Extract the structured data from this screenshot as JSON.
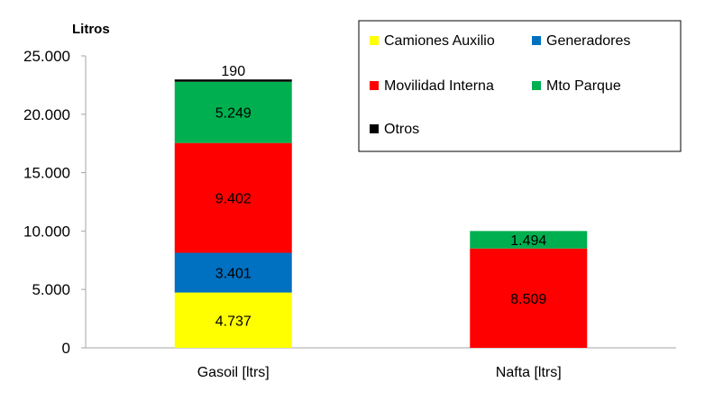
{
  "chart_data": {
    "type": "bar",
    "stacked": true,
    "ylabel": "Litros",
    "ylim": [
      0,
      25000
    ],
    "yticks": [
      0,
      5000,
      10000,
      15000,
      20000,
      25000
    ],
    "ytick_labels": [
      "0",
      "5.000",
      "10.000",
      "15.000",
      "20.000",
      "25.000"
    ],
    "grid": false,
    "legend_position": "top-right",
    "categories": [
      "Gasoil [ltrs]",
      "Nafta [ltrs]"
    ],
    "series": [
      {
        "name": "Camiones Auxilio",
        "color": "#ffff00",
        "values": [
          4737,
          0
        ],
        "labels": [
          "4.737",
          ""
        ]
      },
      {
        "name": "Generadores",
        "color": "#0070c0",
        "values": [
          3401,
          0
        ],
        "labels": [
          "3.401",
          ""
        ]
      },
      {
        "name": "Movilidad Interna",
        "color": "#ff0000",
        "values": [
          9402,
          8509
        ],
        "labels": [
          "9.402",
          "8.509"
        ]
      },
      {
        "name": "Mto Parque",
        "color": "#00b050",
        "values": [
          5249,
          1494
        ],
        "labels": [
          "5.249",
          "1.494"
        ]
      },
      {
        "name": "Otros",
        "color": "#000000",
        "values": [
          190,
          0
        ],
        "labels": [
          "190",
          ""
        ]
      }
    ]
  }
}
